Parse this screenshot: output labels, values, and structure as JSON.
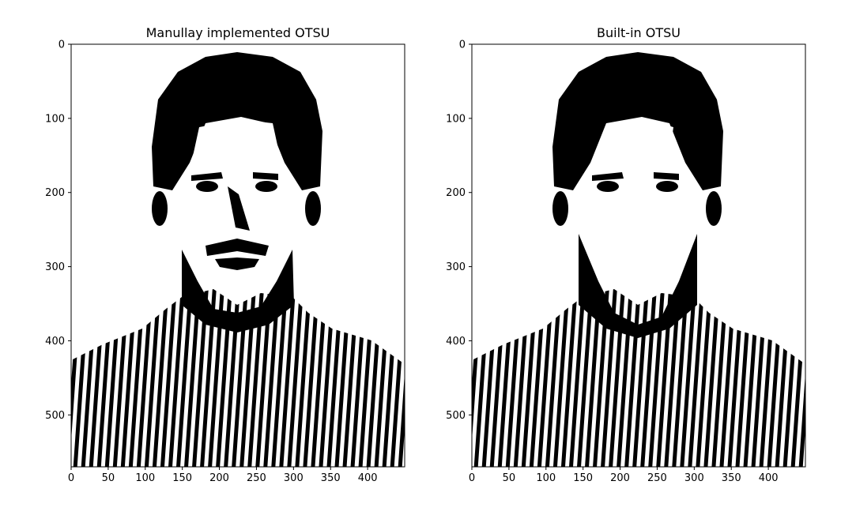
{
  "chart_data": [
    {
      "type": "image",
      "title": "Manullay implemented OTSU",
      "xticks": [
        0,
        50,
        100,
        150,
        200,
        250,
        300,
        350,
        400
      ],
      "yticks": [
        0,
        100,
        200,
        300,
        400,
        500
      ],
      "xlim": [
        0,
        450
      ],
      "ylim": [
        570,
        0
      ],
      "colors": {
        "foreground": "#000000",
        "background": "#ffffff"
      },
      "variant": "manual"
    },
    {
      "type": "image",
      "title": "Built-in OTSU",
      "xticks": [
        0,
        50,
        100,
        150,
        200,
        250,
        300,
        350,
        400
      ],
      "yticks": [
        0,
        100,
        200,
        300,
        400,
        500
      ],
      "xlim": [
        0,
        450
      ],
      "ylim": [
        570,
        0
      ],
      "colors": {
        "foreground": "#000000",
        "background": "#ffffff"
      },
      "variant": "builtin"
    }
  ]
}
